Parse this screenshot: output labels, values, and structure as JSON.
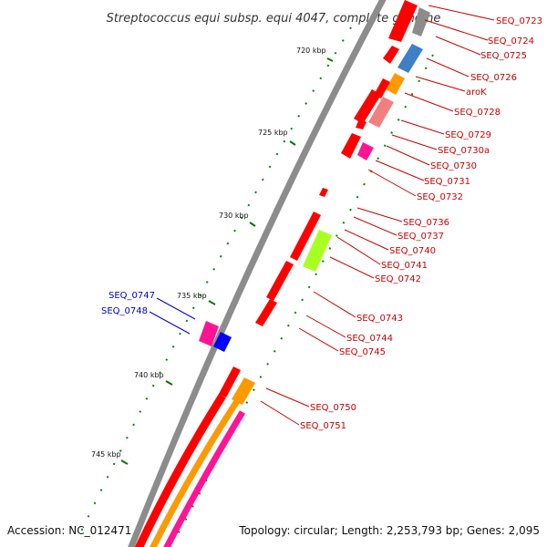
{
  "title": "Streptococcus equi subsp. equi 4047, complete genome",
  "accession": "Accession: NC_012471",
  "topology": "Topology: circular; Length: 2,253,793 bp; Genes: 2,095",
  "ticks": [
    "720 kbp",
    "725 kbp",
    "730 kbp",
    "735 kbp",
    "740 kbp",
    "745 kbp"
  ],
  "labels_red": [
    "SEQ_0723",
    "SEQ_0724",
    "SEQ_0725",
    "SEQ_0726",
    "aroK",
    "SEQ_0728",
    "SEQ_0729",
    "SEQ_0730a",
    "SEQ_0730",
    "SEQ_0731",
    "SEQ_0732",
    "SEQ_0736",
    "SEQ_0737",
    "SEQ_0740",
    "SEQ_0741",
    "SEQ_0742",
    "SEQ_0743",
    "SEQ_0744",
    "SEQ_0745",
    "SEQ_0750",
    "SEQ_0751"
  ],
  "labels_blue": [
    "SEQ_0747",
    "SEQ_0748"
  ],
  "colors": {
    "cds": "#ff0000",
    "backbone": "#8c8c8c",
    "blue": "#3f7fc4",
    "orange": "#ff9900",
    "salmon": "#f08080",
    "magenta": "#ff1493",
    "lime": "#aaff22",
    "darkblue": "#0000ff",
    "tick_green": "#007700"
  }
}
